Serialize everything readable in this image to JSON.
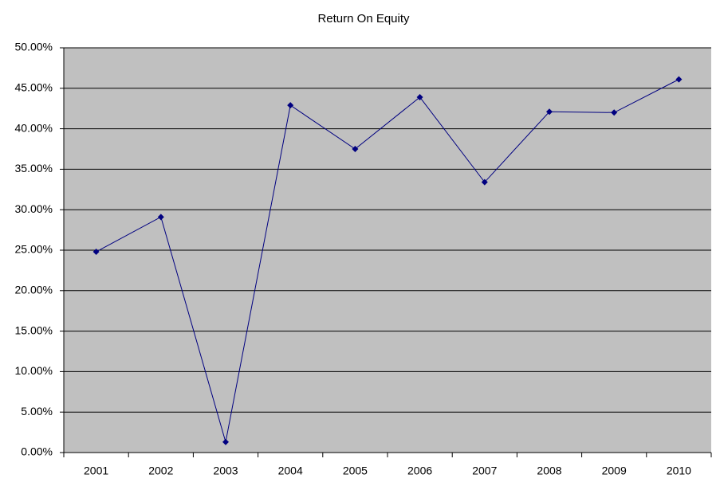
{
  "chart_data": {
    "type": "line",
    "title": "Return On Equity",
    "categories": [
      "2001",
      "2002",
      "2003",
      "2004",
      "2005",
      "2006",
      "2007",
      "2008",
      "2009",
      "2010"
    ],
    "series": [
      {
        "name": "Return On Equity",
        "color": "#000080",
        "values": [
          24.8,
          29.1,
          1.3,
          42.9,
          37.5,
          43.9,
          33.4,
          42.1,
          42.0,
          46.1
        ]
      }
    ],
    "ylim": [
      0,
      50
    ],
    "yticks": [
      {
        "value": 0,
        "label": "0.00%"
      },
      {
        "value": 5,
        "label": "5.00%"
      },
      {
        "value": 10,
        "label": "10.00%"
      },
      {
        "value": 15,
        "label": "15.00%"
      },
      {
        "value": 20,
        "label": "20.00%"
      },
      {
        "value": 25,
        "label": "25.00%"
      },
      {
        "value": 30,
        "label": "30.00%"
      },
      {
        "value": 35,
        "label": "35.00%"
      },
      {
        "value": 40,
        "label": "40.00%"
      },
      {
        "value": 45,
        "label": "45.00%"
      },
      {
        "value": 50,
        "label": "50.00%"
      }
    ],
    "grid": true,
    "plot_background": "#c0c0c0"
  }
}
